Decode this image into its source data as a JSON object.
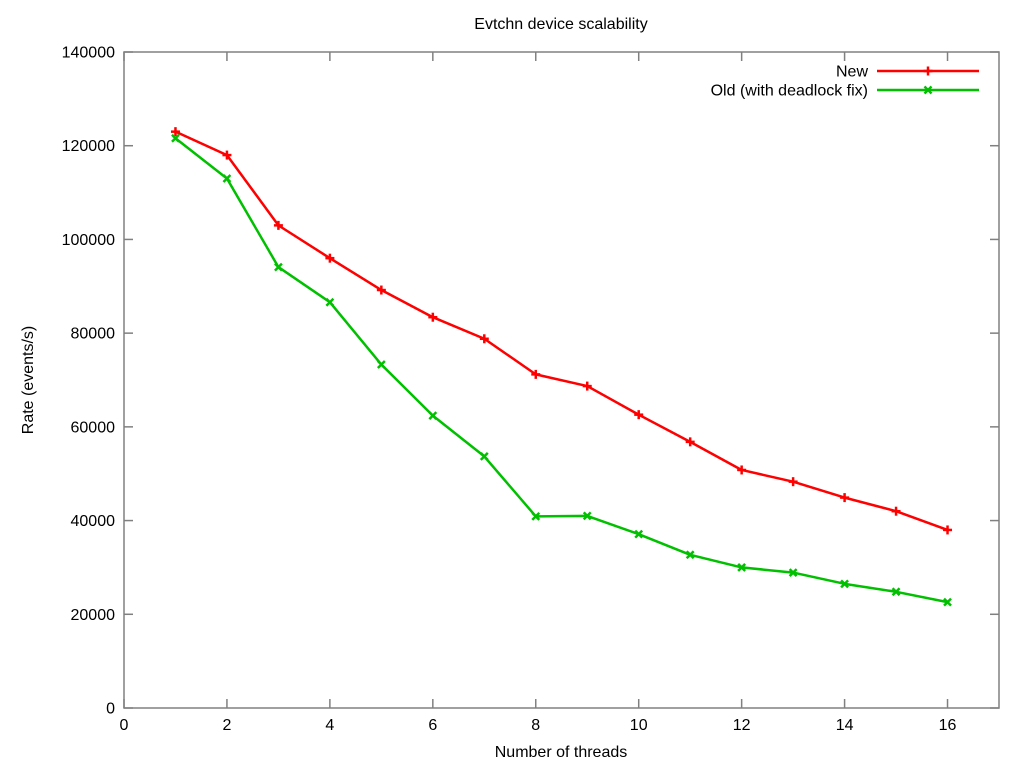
{
  "chart_data": {
    "type": "line",
    "title": "Evtchn device scalability",
    "xlabel": "Number of threads",
    "ylabel": "Rate (events/s)",
    "xlim": [
      0,
      17
    ],
    "ylim": [
      0,
      140000
    ],
    "xticks": [
      0,
      2,
      4,
      6,
      8,
      10,
      12,
      14,
      16
    ],
    "yticks": [
      0,
      20000,
      40000,
      60000,
      80000,
      100000,
      120000,
      140000
    ],
    "grid": false,
    "legend_position": "top-right-inside",
    "x": [
      1,
      2,
      3,
      4,
      5,
      6,
      7,
      8,
      9,
      10,
      11,
      12,
      13,
      14,
      15,
      16
    ],
    "series": [
      {
        "name": "New",
        "color": "#ff0000",
        "marker": "plus",
        "values": [
          123000,
          118000,
          103000,
          96000,
          89200,
          83400,
          78800,
          71200,
          68700,
          62600,
          56800,
          50800,
          48300,
          44900,
          42000,
          38000
        ]
      },
      {
        "name": "Old (with deadlock fix)",
        "color": "#00c000",
        "marker": "cross",
        "values": [
          121600,
          113000,
          94100,
          86600,
          73300,
          62400,
          53700,
          40900,
          41000,
          37100,
          32700,
          30000,
          28900,
          26500,
          24800,
          22600
        ]
      }
    ],
    "axis_color": "#808080",
    "text_color": "#000000",
    "background_color": "#ffffff"
  }
}
